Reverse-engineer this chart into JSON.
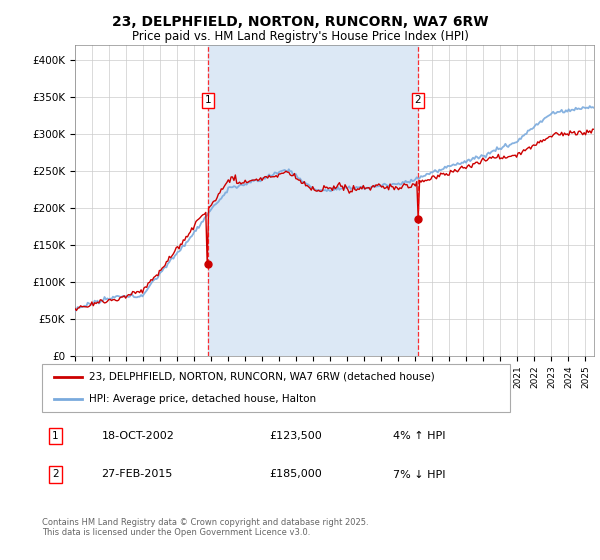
{
  "title": "23, DELPHFIELD, NORTON, RUNCORN, WA7 6RW",
  "subtitle": "Price paid vs. HM Land Registry's House Price Index (HPI)",
  "ylim": [
    0,
    420000
  ],
  "yticks": [
    0,
    50000,
    100000,
    150000,
    200000,
    250000,
    300000,
    350000,
    400000
  ],
  "ytick_labels": [
    "£0",
    "£50K",
    "£100K",
    "£150K",
    "£200K",
    "£250K",
    "£300K",
    "£350K",
    "£400K"
  ],
  "sale1_date": 2002.8,
  "sale1_price": 123500,
  "sale2_date": 2015.15,
  "sale2_price": 185000,
  "legend_property": "23, DELPHFIELD, NORTON, RUNCORN, WA7 6RW (detached house)",
  "legend_hpi": "HPI: Average price, detached house, Halton",
  "note1_date": "18-OCT-2002",
  "note1_price": "£123,500",
  "note1_hpi": "4% ↑ HPI",
  "note2_date": "27-FEB-2015",
  "note2_price": "£185,000",
  "note2_hpi": "7% ↓ HPI",
  "footer": "Contains HM Land Registry data © Crown copyright and database right 2025.\nThis data is licensed under the Open Government Licence v3.0.",
  "hpi_color": "#7aaadd",
  "property_color": "#cc0000",
  "shade_color": "#dce8f5",
  "grid_color": "#cccccc",
  "xmin": 1995,
  "xmax": 2025.5
}
